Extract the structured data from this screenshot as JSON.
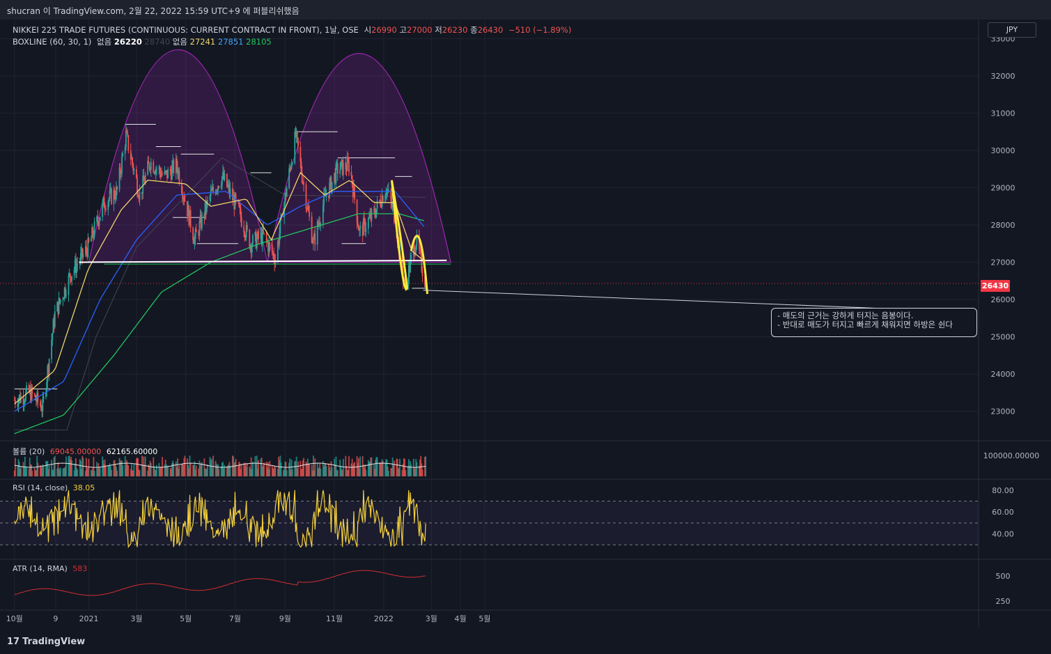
{
  "header": {
    "publisher_line": "shucran 이 TradingView.com, 2월 22, 2022 15:59 UTC+9 에 퍼블리쉬했음"
  },
  "footer": {
    "logo_text": "TradingView"
  },
  "main_pane": {
    "title": "NIKKEI 225 TRADE FUTURES (CONTINUOUS: CURRENT CONTRACT IN FRONT), 1날, OSE",
    "open_label": "시",
    "open_value": "26990",
    "high_label": "고",
    "high_value": "27000",
    "low_label": "저",
    "low_value": "26230",
    "close_label": "종",
    "close_value": "26430",
    "change": "−510 (−1.89%)",
    "indicator_title": "BOXLINE (60, 30, 1)",
    "indicator_na_1": "없음",
    "indicator_v1": "26220",
    "indicator_v2": "28740",
    "indicator_na_2": "없음",
    "indicator_v3": "27241",
    "indicator_v4": "27851",
    "indicator_v5": "28105",
    "currency": "JPY",
    "last_price_tag": "26430",
    "note_line1": "- 매도의 근거는 강하게 터지는 음봉이다.",
    "note_line2": "- 반대로 매도가 터지고 빠르게 채워지면 하방은 쉰다"
  },
  "volume_pane": {
    "title": "볼륨 (20)",
    "v1": "69045.00000",
    "v2": "62165.60000"
  },
  "rsi_pane": {
    "title": "RSI (14, close)",
    "value": "38.05"
  },
  "atr_pane": {
    "title": "ATR (14, RMA)",
    "value": "583"
  },
  "colors": {
    "background": "#131722",
    "up": "#26a69a",
    "down": "#ef5350",
    "sma_fast": "#f0d56a",
    "sma_mid": "#2962ff",
    "sma_slow": "#22c55e",
    "dome": "#9c27b0",
    "rsi": "#f5d13c",
    "atr": "#d32f2f",
    "highlight": "#ffeb3b"
  },
  "chart_data": {
    "type": "candlestick",
    "x_axis_labels": [
      "10월",
      "9",
      "2021",
      "3월",
      "5월",
      "7월",
      "9월",
      "11월",
      "2022",
      "3월",
      "4월",
      "5월"
    ],
    "price_axis": {
      "ticks": [
        23000,
        24000,
        25000,
        26000,
        27000,
        28000,
        29000,
        30000,
        31000,
        32000,
        33000
      ],
      "ylim": [
        22300,
        33100
      ]
    },
    "volume_axis": {
      "ticks": [
        "100000.00000"
      ]
    },
    "rsi_axis": {
      "ticks": [
        "80.00",
        "60.00",
        "40.00"
      ],
      "levels": [
        70,
        50,
        30
      ]
    },
    "atr_axis": {
      "ticks": [
        "500",
        "250"
      ]
    },
    "price_path": [
      {
        "date": "2020-10-01",
        "price": 23300
      },
      {
        "date": "2020-10-20",
        "price": 23500
      },
      {
        "date": "2020-11-05",
        "price": 23100
      },
      {
        "date": "2020-11-20",
        "price": 25600
      },
      {
        "date": "2020-12-10",
        "price": 26700
      },
      {
        "date": "2020-12-31",
        "price": 27400
      },
      {
        "date": "2021-01-20",
        "price": 28600
      },
      {
        "date": "2021-02-05",
        "price": 28900
      },
      {
        "date": "2021-02-16",
        "price": 30400
      },
      {
        "date": "2021-03-05",
        "price": 28800
      },
      {
        "date": "2021-03-18",
        "price": 29700
      },
      {
        "date": "2021-04-05",
        "price": 29300
      },
      {
        "date": "2021-04-20",
        "price": 29600
      },
      {
        "date": "2021-05-12",
        "price": 27600
      },
      {
        "date": "2021-06-01",
        "price": 28800
      },
      {
        "date": "2021-06-15",
        "price": 29300
      },
      {
        "date": "2021-07-05",
        "price": 28400
      },
      {
        "date": "2021-07-20",
        "price": 27500
      },
      {
        "date": "2021-08-05",
        "price": 27700
      },
      {
        "date": "2021-08-20",
        "price": 27100
      },
      {
        "date": "2021-09-03",
        "price": 29000
      },
      {
        "date": "2021-09-14",
        "price": 30400
      },
      {
        "date": "2021-10-06",
        "price": 27500
      },
      {
        "date": "2021-10-20",
        "price": 28700
      },
      {
        "date": "2021-11-05",
        "price": 29500
      },
      {
        "date": "2021-11-20",
        "price": 29600
      },
      {
        "date": "2021-12-02",
        "price": 27800
      },
      {
        "date": "2021-12-20",
        "price": 28300
      },
      {
        "date": "2022-01-04",
        "price": 29000
      },
      {
        "date": "2022-01-15",
        "price": 28200
      },
      {
        "date": "2022-01-27",
        "price": 26300
      },
      {
        "date": "2022-02-10",
        "price": 27600
      },
      {
        "date": "2022-02-22",
        "price": 26430
      }
    ],
    "sma_fast_path": [
      {
        "date": "2020-10-01",
        "price": 23200
      },
      {
        "date": "2020-11-20",
        "price": 24100
      },
      {
        "date": "2020-12-31",
        "price": 26800
      },
      {
        "date": "2021-02-10",
        "price": 28400
      },
      {
        "date": "2021-03-15",
        "price": 29200
      },
      {
        "date": "2021-05-01",
        "price": 29100
      },
      {
        "date": "2021-06-01",
        "price": 28500
      },
      {
        "date": "2021-07-15",
        "price": 28700
      },
      {
        "date": "2021-08-15",
        "price": 27600
      },
      {
        "date": "2021-09-20",
        "price": 29400
      },
      {
        "date": "2021-10-20",
        "price": 28800
      },
      {
        "date": "2021-11-20",
        "price": 29200
      },
      {
        "date": "2021-12-20",
        "price": 28600
      },
      {
        "date": "2022-01-15",
        "price": 28600
      },
      {
        "date": "2022-02-05",
        "price": 27300
      },
      {
        "date": "2022-02-22",
        "price": 27000
      }
    ],
    "sma_mid_path": [
      {
        "date": "2020-10-01",
        "price": 23000
      },
      {
        "date": "2020-12-01",
        "price": 23800
      },
      {
        "date": "2021-01-15",
        "price": 26000
      },
      {
        "date": "2021-03-01",
        "price": 27600
      },
      {
        "date": "2021-04-20",
        "price": 28800
      },
      {
        "date": "2021-06-20",
        "price": 28900
      },
      {
        "date": "2021-08-10",
        "price": 28000
      },
      {
        "date": "2021-09-20",
        "price": 28500
      },
      {
        "date": "2021-11-01",
        "price": 28900
      },
      {
        "date": "2021-12-10",
        "price": 28900
      },
      {
        "date": "2022-01-15",
        "price": 28900
      },
      {
        "date": "2022-02-22",
        "price": 27900
      }
    ],
    "sma_slow_path": [
      {
        "date": "2020-10-01",
        "price": 22400
      },
      {
        "date": "2020-12-01",
        "price": 22900
      },
      {
        "date": "2021-02-01",
        "price": 24500
      },
      {
        "date": "2021-04-01",
        "price": 26200
      },
      {
        "date": "2021-06-01",
        "price": 27000
      },
      {
        "date": "2021-08-01",
        "price": 27500
      },
      {
        "date": "2021-10-01",
        "price": 27900
      },
      {
        "date": "2021-12-01",
        "price": 28300
      },
      {
        "date": "2022-01-20",
        "price": 28300
      },
      {
        "date": "2022-02-22",
        "price": 28100
      }
    ],
    "neckline_price": 27000,
    "domes": [
      {
        "start": "2021-01-01",
        "end": "2021-08-10",
        "peak_price": 32700
      },
      {
        "start": "2021-08-10",
        "end": "2022-03-25",
        "peak_price": 32600
      }
    ]
  }
}
